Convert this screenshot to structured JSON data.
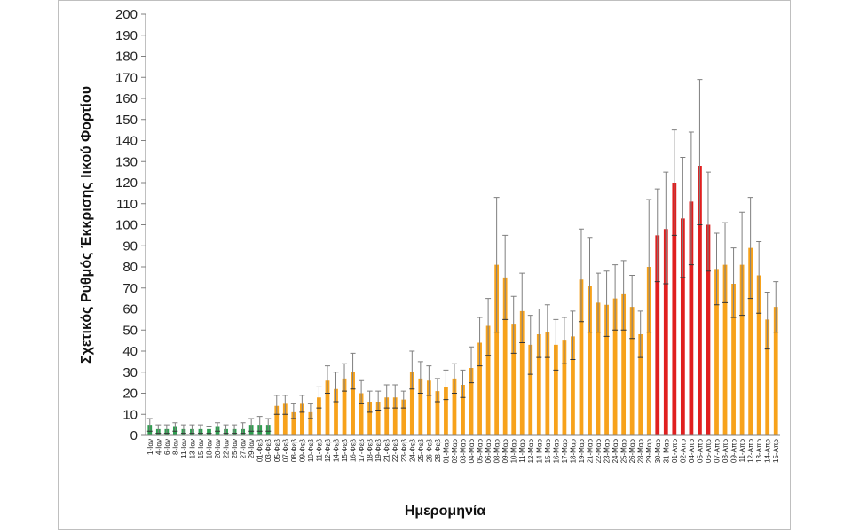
{
  "chart_data": {
    "type": "bar",
    "ylabel": "Σχετικός Ρυθμός Έκκρισης Ιικού Φορτίου",
    "xlabel": "Ημερομηνία",
    "ylim": [
      0,
      200
    ],
    "ytick_step": 10,
    "grid": false,
    "legend": "none",
    "categories": [
      "1-Ιαν",
      "4-Ιαν",
      "6-Ιαν",
      "8-Ιαν",
      "11-Ιαν",
      "13-Ιαν",
      "15-Ιαν",
      "18-Ιαν",
      "20-Ιαν",
      "22-Ιαν",
      "25-Ιαν",
      "27-Ιαν",
      "29-Ιαν",
      "01-Φεβ",
      "03-Φεβ",
      "05-Φεβ",
      "07-Φεβ",
      "08-Φεβ",
      "09-Φεβ",
      "10-Φεβ",
      "11-Φεβ",
      "12-Φεβ",
      "14-Φεβ",
      "15-Φεβ",
      "16-Φεβ",
      "17-Φεβ",
      "18-Φεβ",
      "19-Φεβ",
      "21-Φεβ",
      "22-Φεβ",
      "23-Φεβ",
      "24-Φεβ",
      "25-Φεβ",
      "26-Φεβ",
      "28-Φεβ",
      "01-Μαρ",
      "02-Μαρ",
      "03-Μαρ",
      "04-Μαρ",
      "05-Μαρ",
      "06-Μαρ",
      "08-Μαρ",
      "09-Μαρ",
      "10-Μαρ",
      "11-Μαρ",
      "12-Μαρ",
      "14-Μαρ",
      "15-Μαρ",
      "16-Μαρ",
      "17-Μαρ",
      "18-Μαρ",
      "19-Μαρ",
      "21-Μαρ",
      "22-Μαρ",
      "23-Μαρ",
      "24-Μαρ",
      "25-Μαρ",
      "26-Μαρ",
      "28-Μαρ",
      "29-Μαρ",
      "30-Μαρ",
      "31-Μαρ",
      "01-Απρ",
      "02-Απρ",
      "04-Απρ",
      "05-Απρ",
      "06-Απρ",
      "07-Απρ",
      "08-Απρ",
      "09-Απρ",
      "11-Απρ",
      "12-Απρ",
      "13-Απρ",
      "14-Απρ",
      "15-Απρ"
    ],
    "values": [
      5,
      3,
      3,
      4,
      3,
      3,
      3,
      3,
      4,
      3,
      3,
      3,
      5,
      5,
      5,
      14,
      15,
      11,
      15,
      11,
      18,
      26,
      22,
      27,
      30,
      20,
      16,
      16,
      18,
      18,
      17,
      30,
      27,
      26,
      21,
      23,
      27,
      24,
      32,
      44,
      52,
      81,
      75,
      53,
      59,
      43,
      48,
      49,
      43,
      45,
      47,
      74,
      71,
      63,
      62,
      65,
      67,
      61,
      48,
      80,
      95,
      98,
      120,
      103,
      111,
      128,
      100,
      79,
      81,
      72,
      81,
      89,
      76,
      55,
      61
    ],
    "error_low": [
      2,
      1,
      1,
      2,
      1,
      1,
      1,
      1,
      2,
      1,
      1,
      1,
      2,
      2,
      2,
      10,
      10,
      8,
      11,
      8,
      13,
      20,
      16,
      21,
      22,
      15,
      11,
      12,
      13,
      13,
      13,
      22,
      20,
      19,
      16,
      17,
      20,
      18,
      25,
      33,
      38,
      49,
      55,
      39,
      44,
      29,
      37,
      37,
      31,
      34,
      36,
      54,
      49,
      49,
      47,
      50,
      50,
      46,
      37,
      49,
      73,
      72,
      95,
      75,
      81,
      100,
      78,
      62,
      63,
      56,
      57,
      65,
      58,
      41,
      49
    ],
    "error_high": [
      8,
      5,
      5,
      6,
      5,
      5,
      5,
      4,
      6,
      5,
      5,
      6,
      8,
      9,
      8,
      19,
      19,
      15,
      19,
      15,
      23,
      33,
      30,
      34,
      39,
      26,
      21,
      21,
      24,
      24,
      21,
      40,
      35,
      33,
      27,
      31,
      34,
      31,
      42,
      56,
      65,
      113,
      95,
      66,
      77,
      57,
      60,
      62,
      55,
      56,
      59,
      98,
      94,
      77,
      78,
      81,
      83,
      76,
      59,
      112,
      117,
      125,
      145,
      132,
      144,
      169,
      125,
      96,
      101,
      89,
      106,
      113,
      92,
      68,
      73
    ],
    "colors": {
      "green": "#2e9e4f",
      "orange": "#f7a21b",
      "red": "#e01f1f",
      "error": "#7f7f7f"
    },
    "color_ranges": [
      {
        "color": "green",
        "from": "1-Ιαν",
        "to": "03-Φεβ"
      },
      {
        "color": "orange",
        "from": "05-Φεβ",
        "to": "29-Μαρ"
      },
      {
        "color": "red",
        "from": "30-Μαρ",
        "to": "06-Απρ"
      },
      {
        "color": "orange",
        "from": "07-Απρ",
        "to": "15-Απρ"
      }
    ]
  }
}
